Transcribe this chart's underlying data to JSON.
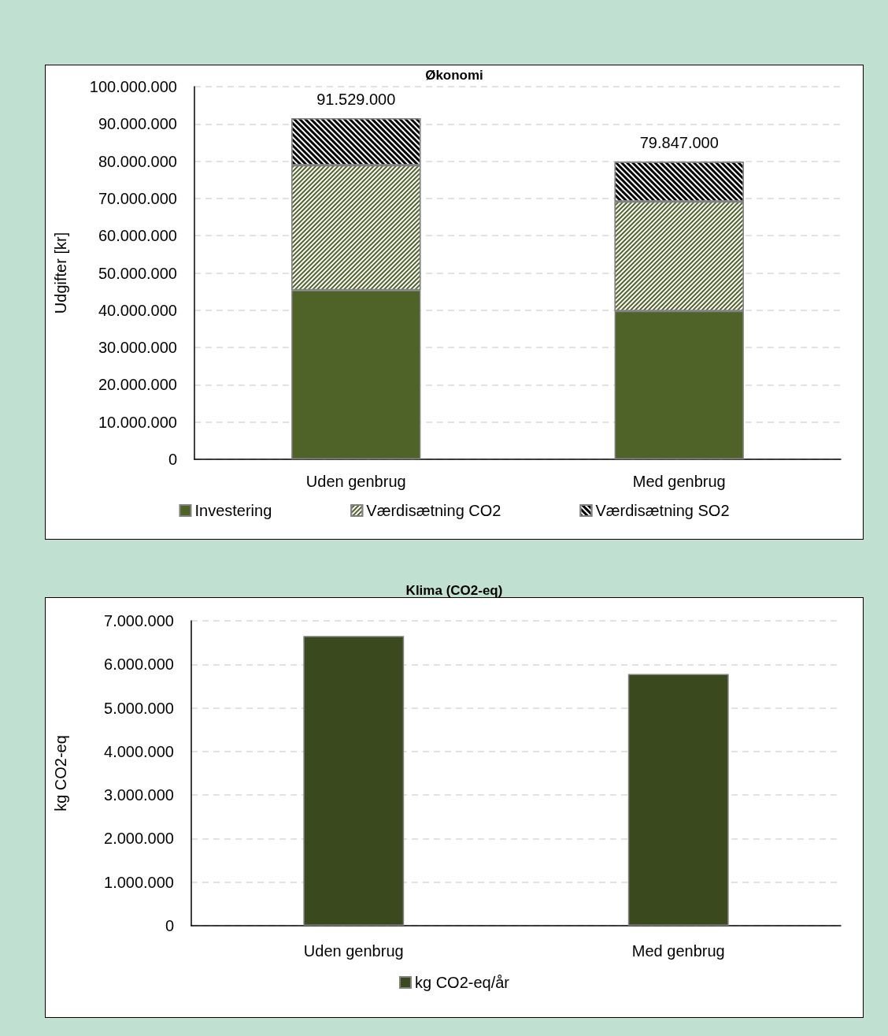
{
  "chart_data": [
    {
      "type": "bar",
      "title": "Økonomi",
      "ylabel": "Udgifter [kr]",
      "categories": [
        "Uden genbrug",
        "Med genbrug"
      ],
      "stacked": true,
      "series": [
        {
          "name": "Investering",
          "color": "#4f6228",
          "values": [
            45400000,
            39800000
          ]
        },
        {
          "name": "Værdisætning CO2",
          "color": "#4f6228",
          "values": [
            33500000,
            29400000
          ]
        },
        {
          "name": "Værdisætning SO2",
          "color": "#000000",
          "values": [
            12629000,
            10647000
          ]
        }
      ],
      "totals": [
        "91.529.000",
        "79.847.000"
      ],
      "ylim": [
        0,
        100000000
      ],
      "yticks": [
        0,
        {
          "value": 10000000,
          "label": "10.000.000"
        },
        {
          "value": 20000000,
          "label": "20.000.000"
        },
        {
          "value": 30000000,
          "label": "30.000.000"
        },
        {
          "value": 40000000,
          "label": "40.000.000"
        },
        {
          "value": 50000000,
          "label": "50.000.000"
        },
        {
          "value": 60000000,
          "label": "60.000.000"
        },
        {
          "value": 70000000,
          "label": "70.000.000"
        },
        {
          "value": 80000000,
          "label": "80.000.000"
        },
        {
          "value": 90000000,
          "label": "90.000.000"
        },
        {
          "value": 100000000,
          "label": "100.000.000"
        }
      ],
      "grid": "y",
      "legend": "bottom"
    },
    {
      "type": "bar",
      "title": "Klima (CO2-eq)",
      "ylabel": "kg CO2-eq",
      "categories": [
        "Uden genbrug",
        "Med genbrug"
      ],
      "series": [
        {
          "name": "kg CO2-eq/år",
          "color": "#3b4a1e",
          "values": [
            6650000,
            5780000
          ]
        }
      ],
      "ylim": [
        0,
        7000000
      ],
      "yticks": [
        0,
        {
          "value": 1000000,
          "label": "1.000.000"
        },
        {
          "value": 2000000,
          "label": "2.000.000"
        },
        {
          "value": 3000000,
          "label": "3.000.000"
        },
        {
          "value": 4000000,
          "label": "4.000.000"
        },
        {
          "value": 5000000,
          "label": "5.000.000"
        },
        {
          "value": 6000000,
          "label": "6.000.000"
        },
        {
          "value": 7000000,
          "label": "7.000.000"
        }
      ],
      "grid": "y",
      "legend": "bottom"
    }
  ]
}
